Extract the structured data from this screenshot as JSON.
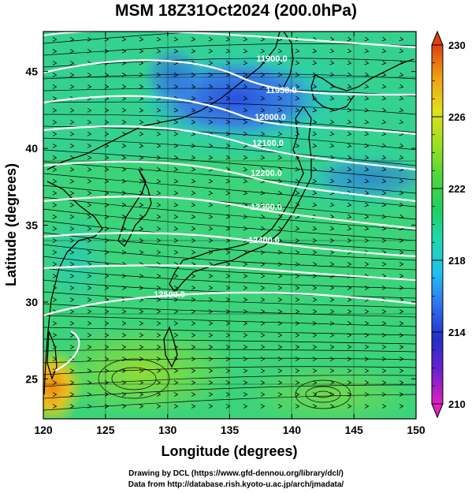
{
  "title": "MSM 18Z31Oct2024 (200.0hPa)",
  "xlabel": "Longitude (degrees)",
  "ylabel": "Latitude  (degrees)",
  "credits": [
    "Drawing by DCL (https://www.gfd-dennou.org/library/dcl/)",
    "Data from http://database.rish.kyoto-u.ac.jp/arch/jmadata/"
  ],
  "map": {
    "lon_range": [
      120,
      150
    ],
    "lat_range": [
      22.4,
      47.6
    ],
    "lon_ticks": [
      "120",
      "125",
      "130",
      "135",
      "140",
      "145",
      "150"
    ],
    "lat_ticks": [
      "25",
      "30",
      "35",
      "40",
      "45"
    ],
    "contour_labels": [
      "11900.0",
      "11950.0",
      "12000.0",
      "12100.0",
      "12200.0",
      "12300.0",
      "12400.0",
      "12500.0"
    ]
  },
  "colorbar": {
    "ticks": [
      "230",
      "226",
      "222",
      "218",
      "214",
      "210"
    ],
    "min": 210,
    "max": 230,
    "colors": [
      "#e020c0",
      "#7020d0",
      "#2030c8",
      "#3070f0",
      "#20c0f0",
      "#20d8b0",
      "#20d060",
      "#50d838",
      "#a0e020",
      "#e0e020",
      "#f0a010",
      "#e04010"
    ]
  }
}
